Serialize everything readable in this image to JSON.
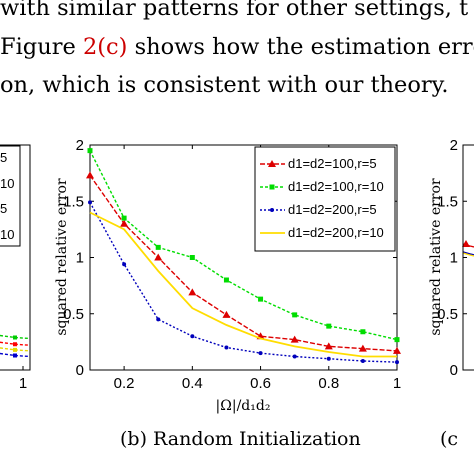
{
  "body_text": {
    "line1": "with similar patterns for other settings, t",
    "line2_before": "Figure ",
    "line2_ref": "2(c)",
    "line2_after": " shows how the estimation erro",
    "line3": "on, which is consistent with our theory."
  },
  "captions": {
    "center": "(b) Random Initialization",
    "right": "(c"
  },
  "chart_data": [
    {
      "panel": "left-partial",
      "type": "line",
      "legend_fragments": [
        "5",
        "10",
        "5",
        "10"
      ],
      "x_tick_labels": [
        "1"
      ],
      "series_colors": [
        "#00cc00",
        "#ff0000",
        "#0000cc",
        "#e6d800"
      ],
      "y_right_edge_values": [
        0.28,
        0.22,
        0.12,
        0.17
      ]
    },
    {
      "panel": "center",
      "type": "line",
      "title": "",
      "xlabel": "|Ω|/d₁d₂",
      "ylabel": "squared relative error",
      "xlim": [
        0.1,
        1
      ],
      "ylim": [
        0,
        2
      ],
      "x_ticks": [
        0.2,
        0.4,
        0.6,
        0.8,
        1
      ],
      "x_tick_labels": [
        "0.2",
        "0.4",
        "0.6",
        "0.8",
        "1"
      ],
      "y_ticks": [
        0,
        0.5,
        1,
        1.5,
        2
      ],
      "y_tick_labels": [
        "0",
        "0.5",
        "1",
        "1.5",
        "2"
      ],
      "legend_position": "top-right",
      "x": [
        0.1,
        0.2,
        0.3,
        0.4,
        0.5,
        0.6,
        0.7,
        0.8,
        0.9,
        1.0
      ],
      "series": [
        {
          "name": "d1=d2=100,r=5",
          "color": "#dd0000",
          "marker": "triangle",
          "values": [
            1.73,
            1.3,
            1.0,
            0.69,
            0.49,
            0.3,
            0.27,
            0.21,
            0.19,
            0.17
          ]
        },
        {
          "name": "d1=d2=100,r=10",
          "color": "#00dd00",
          "marker": "square",
          "values": [
            1.95,
            1.35,
            1.09,
            1.0,
            0.8,
            0.63,
            0.49,
            0.39,
            0.34,
            0.27
          ]
        },
        {
          "name": "d1=d2=200,r=5",
          "color": "#0000bb",
          "marker": "dot",
          "values": [
            1.49,
            0.94,
            0.45,
            0.3,
            0.2,
            0.15,
            0.12,
            0.1,
            0.08,
            0.07
          ]
        },
        {
          "name": "d1=d2=200,r=10",
          "color": "#ffdd00",
          "marker": "none",
          "values": [
            1.4,
            1.25,
            0.88,
            0.55,
            0.4,
            0.28,
            0.21,
            0.16,
            0.12,
            0.12
          ]
        }
      ]
    },
    {
      "panel": "right-partial",
      "type": "line",
      "ylabel": "squared relative error",
      "y_tick_labels": [
        "0",
        "0.5",
        "1",
        "1.5",
        "2"
      ],
      "ylim": [
        0,
        2
      ],
      "series_colors": [
        "#dd0000",
        "#0000bb",
        "#ffdd00"
      ],
      "y_left_edge_values": [
        1.12,
        1.05,
        1.04
      ]
    }
  ]
}
